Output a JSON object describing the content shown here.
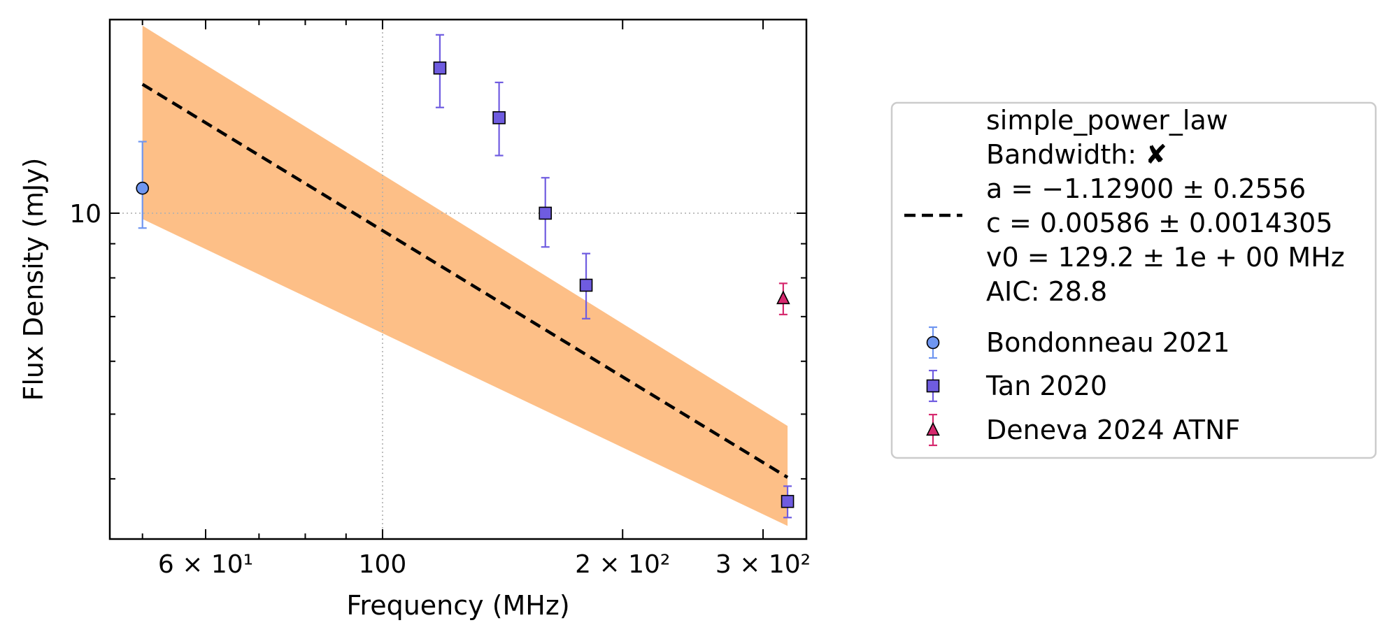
{
  "chart_data": {
    "type": "scatter",
    "xlabel": "Frequency (MHz)",
    "ylabel": "Flux Density (mJy)",
    "xscale": "log",
    "yscale": "log",
    "xlim": [
      45.5,
      340
    ],
    "ylim": [
      3.25,
      19.5
    ],
    "grid": "dotted at major ticks",
    "x_ticks": [
      {
        "value": 60,
        "label": "6 × 10¹"
      },
      {
        "value": 100,
        "label": "100"
      },
      {
        "value": 200,
        "label": "2 × 10²"
      },
      {
        "value": 300,
        "label": "3 × 10²"
      }
    ],
    "y_ticks": [
      {
        "value": 10,
        "label": "10"
      }
    ],
    "legend_position": "outside-right",
    "fit": {
      "name": "simple_power_law",
      "legend_lines": [
        "simple_power_law",
        "Bandwidth: ✘",
        "a = −1.12900 ± 0.2556",
        "c = 0.00586 ± 0.0014305",
        "v0 = 129.2 ± 1e + 00 MHz",
        "AIC: 28.8"
      ],
      "line": [
        [
          50,
          15.6
        ],
        [
          322,
          4.02
        ]
      ],
      "band_upper": [
        [
          50,
          19.1
        ],
        [
          322,
          4.8
        ]
      ],
      "band_lower": [
        [
          50,
          9.8
        ],
        [
          322,
          3.4
        ]
      ],
      "line_color": "#000000",
      "band_color": "#fdbf87"
    },
    "series": [
      {
        "name": "Bondonneau 2021",
        "marker": "circle",
        "color": "#6f96f0",
        "error_color": "#6f96f0",
        "points": [
          {
            "x": 50,
            "y": 10.9,
            "y_low": 9.5,
            "y_high": 12.8
          }
        ]
      },
      {
        "name": "Tan 2020",
        "marker": "square",
        "color": "#6f5ce0",
        "error_color": "#6f5ce0",
        "points": [
          {
            "x": 118,
            "y": 16.5,
            "y_low": 14.4,
            "y_high": 18.5
          },
          {
            "x": 140,
            "y": 13.9,
            "y_low": 12.2,
            "y_high": 15.7
          },
          {
            "x": 160,
            "y": 10.0,
            "y_low": 8.9,
            "y_high": 11.3
          },
          {
            "x": 180,
            "y": 7.8,
            "y_low": 6.95,
            "y_high": 8.7
          },
          {
            "x": 322,
            "y": 3.7,
            "y_low": 3.5,
            "y_high": 3.9
          }
        ]
      },
      {
        "name": "Deneva 2024 ATNF",
        "marker": "triangle",
        "color": "#d6296e",
        "error_color": "#d6296e",
        "points": [
          {
            "x": 318,
            "y": 7.45,
            "y_low": 7.05,
            "y_high": 7.85
          }
        ]
      }
    ]
  }
}
